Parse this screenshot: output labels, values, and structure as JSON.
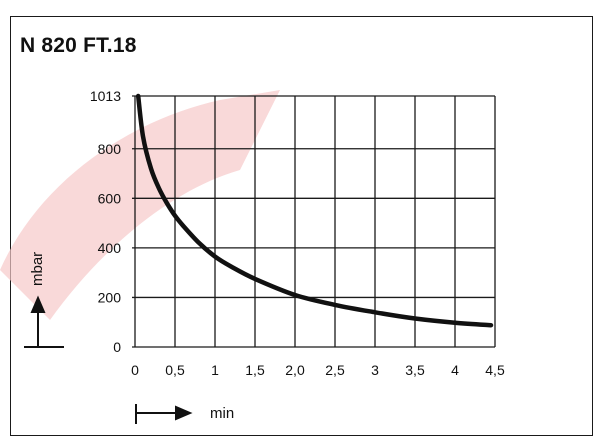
{
  "chart_data": {
    "type": "line",
    "title": "N 820 FT.18",
    "xlabel": "min",
    "ylabel": "mbar",
    "x_ticks": [
      "0",
      "0,5",
      "1",
      "1,5",
      "2,0",
      "2,5",
      "3",
      "3,5",
      "4",
      "4,5"
    ],
    "y_ticks": [
      "0",
      "200",
      "400",
      "600",
      "800",
      "1013"
    ],
    "xlim": [
      0,
      4.5
    ],
    "ylim": [
      0,
      1013
    ],
    "grid": true,
    "series": [
      {
        "x": [
          0.04,
          0.1,
          0.2,
          0.3,
          0.4,
          0.5,
          0.6,
          0.8,
          1.0,
          1.2,
          1.5,
          2.0,
          2.5,
          3.0,
          3.5,
          4.0,
          4.45
        ],
        "y": [
          1013,
          850,
          720,
          640,
          580,
          530,
          490,
          420,
          365,
          325,
          275,
          210,
          170,
          140,
          115,
          98,
          88
        ]
      }
    ],
    "colors": {
      "curve": "#111111",
      "grid": "#1a1a1a",
      "watermark": "#f6c9c9"
    }
  }
}
